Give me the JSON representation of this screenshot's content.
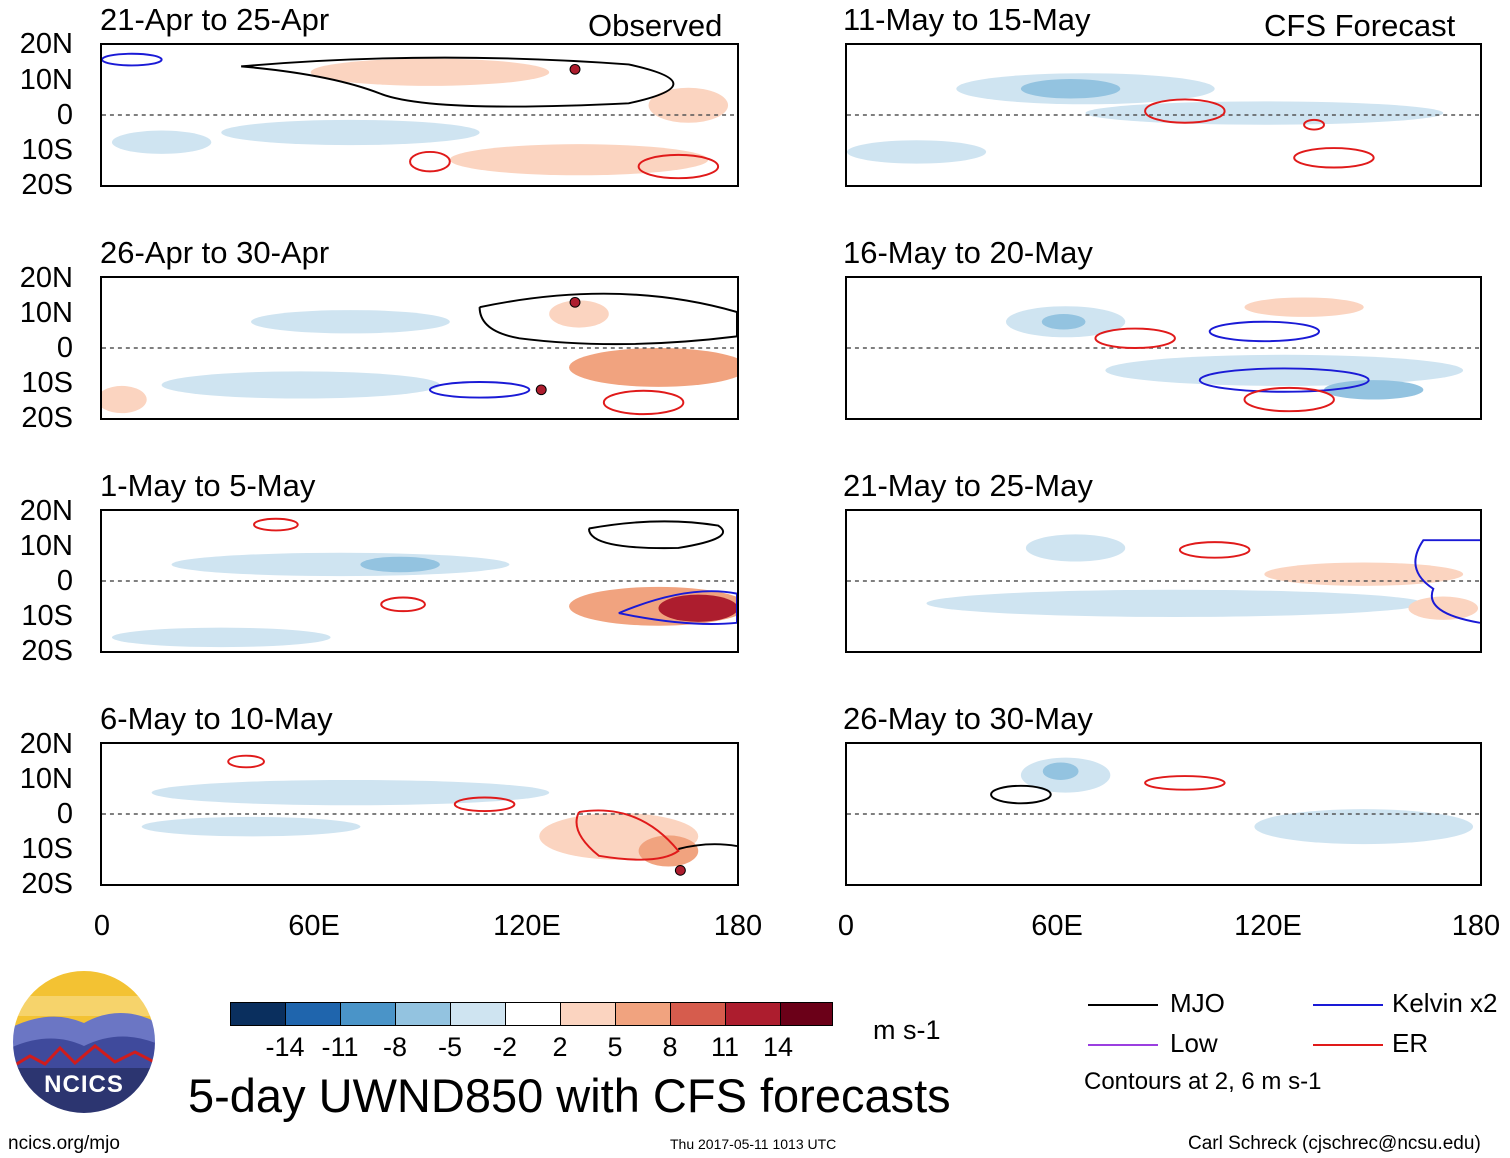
{
  "left_column_label": "Observed",
  "right_column_label": "CFS Forecast",
  "panels": {
    "obs": [
      {
        "title": "21-Apr to 25-Apr"
      },
      {
        "title": "26-Apr to 30-Apr"
      },
      {
        "title": "1-May to 5-May"
      },
      {
        "title": "6-May to 10-May"
      }
    ],
    "fcst": [
      {
        "title": "11-May to 15-May"
      },
      {
        "title": "16-May to 20-May"
      },
      {
        "title": "21-May to 25-May"
      },
      {
        "title": "26-May to 30-May"
      }
    ]
  },
  "axes": {
    "lat_labels": [
      "20N",
      "10N",
      "0",
      "10S",
      "20S"
    ],
    "lon_labels": [
      "0",
      "60E",
      "120E",
      "180"
    ]
  },
  "colorbar": {
    "ticks": [
      "-14",
      "-11",
      "-8",
      "-5",
      "-2",
      "2",
      "5",
      "8",
      "11",
      "14"
    ],
    "colors": [
      "#0a2f5e",
      "#1f65ad",
      "#4a94c8",
      "#93c3e0",
      "#cfe4f1",
      "#ffffff",
      "#fbd4c0",
      "#f1a37f",
      "#d65c4d",
      "#ad1d2e",
      "#6b0018"
    ],
    "units": "m s-1"
  },
  "legend": {
    "items": [
      {
        "label": "MJO",
        "color": "#000000"
      },
      {
        "label": "Kelvin x2",
        "color": "#1a1ad6"
      },
      {
        "label": "Low",
        "color": "#9b3fe0"
      },
      {
        "label": "ER",
        "color": "#e01a1a"
      }
    ],
    "note": "Contours at 2, 6 m s-1"
  },
  "title": "5-day UWND850 with CFS forecasts",
  "logo": {
    "text": "NCICS"
  },
  "footer": {
    "url": "ncics.org/mjo",
    "timestamp": "Thu 2017-05-11 1013 UTC",
    "credit": "Carl Schreck (cjschrec@ncsu.edu)"
  }
}
